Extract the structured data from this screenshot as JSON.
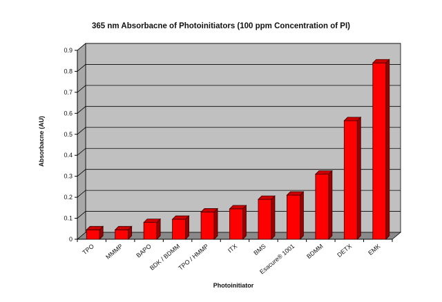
{
  "chart_data": {
    "type": "bar",
    "title": "365 nm Absorbacne of Photoinitiators (100 ppm Concentration of PI)",
    "xlabel": "Photoinitiator",
    "ylabel": "Absorbacne (AU)",
    "ylim": [
      0,
      0.9
    ],
    "yticks": [
      "0",
      "0.1",
      "0.2",
      "0.3",
      "0.4",
      "0.5",
      "0.6",
      "0.7",
      "0.8",
      "0.9"
    ],
    "grid": true,
    "legend": "none",
    "categories": [
      "TPO",
      "MMMP",
      "BAPO",
      "BDK / BDMM",
      "TPO / HMMP",
      "ITX",
      "BMS",
      "Esacure® 1001",
      "BDMM",
      "DETX",
      "EMK"
    ],
    "values": [
      0.045,
      0.045,
      0.08,
      0.095,
      0.13,
      0.145,
      0.19,
      0.21,
      0.31,
      0.565,
      0.84
    ]
  },
  "colors": {
    "wall": "#c0c0c0",
    "floor": "#8a8a8a",
    "bar_front": "#ff0000",
    "bar_side": "#990000",
    "bar_top": "#cc0000",
    "grid": "#000000"
  }
}
